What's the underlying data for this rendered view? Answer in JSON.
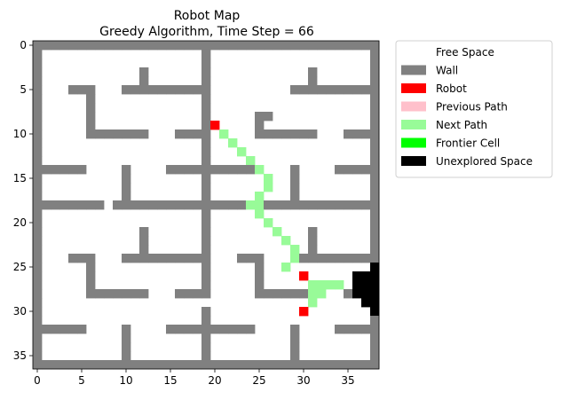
{
  "chart_data": {
    "type": "heatmap",
    "title": "Robot Map",
    "subtitle": "Greedy Algorithm, Time Step = 66",
    "xlabel": "",
    "ylabel": "",
    "grid_size": [
      39,
      37
    ],
    "xlim": [
      -0.5,
      38.5
    ],
    "ylim": [
      36.5,
      -0.5
    ],
    "x_ticks": [
      0,
      5,
      10,
      15,
      20,
      25,
      30,
      35
    ],
    "y_ticks": [
      0,
      5,
      10,
      15,
      20,
      25,
      30,
      35
    ],
    "legend_placement": "outside-upper-right",
    "legend": [
      {
        "label": "Free Space",
        "color": "#ffffff"
      },
      {
        "label": "Wall",
        "color": "#808080"
      },
      {
        "label": "Robot",
        "color": "#ff0000"
      },
      {
        "label": "Previous Path",
        "color": "#ffc0cb"
      },
      {
        "label": "Next Path",
        "color": "#98fb98"
      },
      {
        "label": "Frontier Cell",
        "color": "#00ff00"
      },
      {
        "label": "Unexplored Space",
        "color": "#000000"
      }
    ],
    "walls_rect": [
      [
        0,
        0,
        38,
        0
      ],
      [
        0,
        36,
        38,
        36
      ],
      [
        0,
        0,
        0,
        36
      ],
      [
        38,
        0,
        38,
        36
      ],
      [
        19,
        0,
        19,
        9
      ],
      [
        12,
        3,
        12,
        5
      ],
      [
        10,
        5,
        18,
        5
      ],
      [
        31,
        3,
        31,
        5
      ],
      [
        29,
        5,
        38,
        5
      ],
      [
        4,
        5,
        6,
        5
      ],
      [
        6,
        5,
        6,
        10
      ],
      [
        6,
        10,
        12,
        10
      ],
      [
        16,
        10,
        19,
        10
      ],
      [
        25,
        8,
        26,
        8
      ],
      [
        25,
        8,
        25,
        10
      ],
      [
        25,
        10,
        31,
        10
      ],
      [
        35,
        10,
        38,
        10
      ],
      [
        0,
        14,
        5,
        14
      ],
      [
        10,
        14,
        10,
        18
      ],
      [
        15,
        14,
        24,
        14
      ],
      [
        29,
        14,
        29,
        18
      ],
      [
        34,
        14,
        38,
        14
      ],
      [
        19,
        11,
        19,
        22
      ],
      [
        0,
        18,
        7,
        18
      ],
      [
        9,
        18,
        24,
        18
      ],
      [
        26,
        18,
        38,
        18
      ],
      [
        19,
        19,
        19,
        36
      ],
      [
        12,
        21,
        12,
        23
      ],
      [
        10,
        24,
        18,
        24
      ],
      [
        31,
        21,
        31,
        23
      ],
      [
        29,
        24,
        37,
        24
      ],
      [
        4,
        24,
        6,
        24
      ],
      [
        6,
        24,
        6,
        28
      ],
      [
        6,
        28,
        12,
        28
      ],
      [
        16,
        28,
        18,
        28
      ],
      [
        23,
        24,
        25,
        24
      ],
      [
        25,
        24,
        25,
        28
      ],
      [
        25,
        28,
        31,
        28
      ],
      [
        35,
        28,
        35,
        28
      ],
      [
        0,
        32,
        5,
        32
      ],
      [
        10,
        32,
        10,
        36
      ],
      [
        15,
        32,
        24,
        32
      ],
      [
        29,
        32,
        29,
        36
      ],
      [
        34,
        32,
        38,
        32
      ]
    ],
    "free_cells": [
      [
        19,
        29
      ],
      [
        24,
        18
      ],
      [
        25,
        18
      ]
    ],
    "robots": [
      [
        20,
        9
      ],
      [
        30,
        26
      ],
      [
        30,
        30
      ]
    ],
    "previous_path": [],
    "next_path": [
      [
        21,
        10
      ],
      [
        22,
        11
      ],
      [
        23,
        12
      ],
      [
        24,
        13
      ],
      [
        25,
        14
      ],
      [
        26,
        15
      ],
      [
        26,
        16
      ],
      [
        25,
        17
      ],
      [
        25,
        18
      ],
      [
        24,
        18
      ],
      [
        25,
        19
      ],
      [
        26,
        20
      ],
      [
        27,
        21
      ],
      [
        28,
        22
      ],
      [
        29,
        23
      ],
      [
        29,
        24
      ],
      [
        28,
        25
      ],
      [
        31,
        27
      ],
      [
        32,
        27
      ],
      [
        33,
        27
      ],
      [
        34,
        27
      ],
      [
        31,
        28
      ],
      [
        32,
        28
      ],
      [
        31,
        29
      ]
    ],
    "frontier_cells": [],
    "unexplored_rect": [
      [
        38,
        25,
        38,
        30
      ],
      [
        37,
        26,
        37,
        29
      ],
      [
        36,
        27,
        36,
        28
      ],
      [
        36,
        26,
        36,
        26
      ]
    ]
  }
}
